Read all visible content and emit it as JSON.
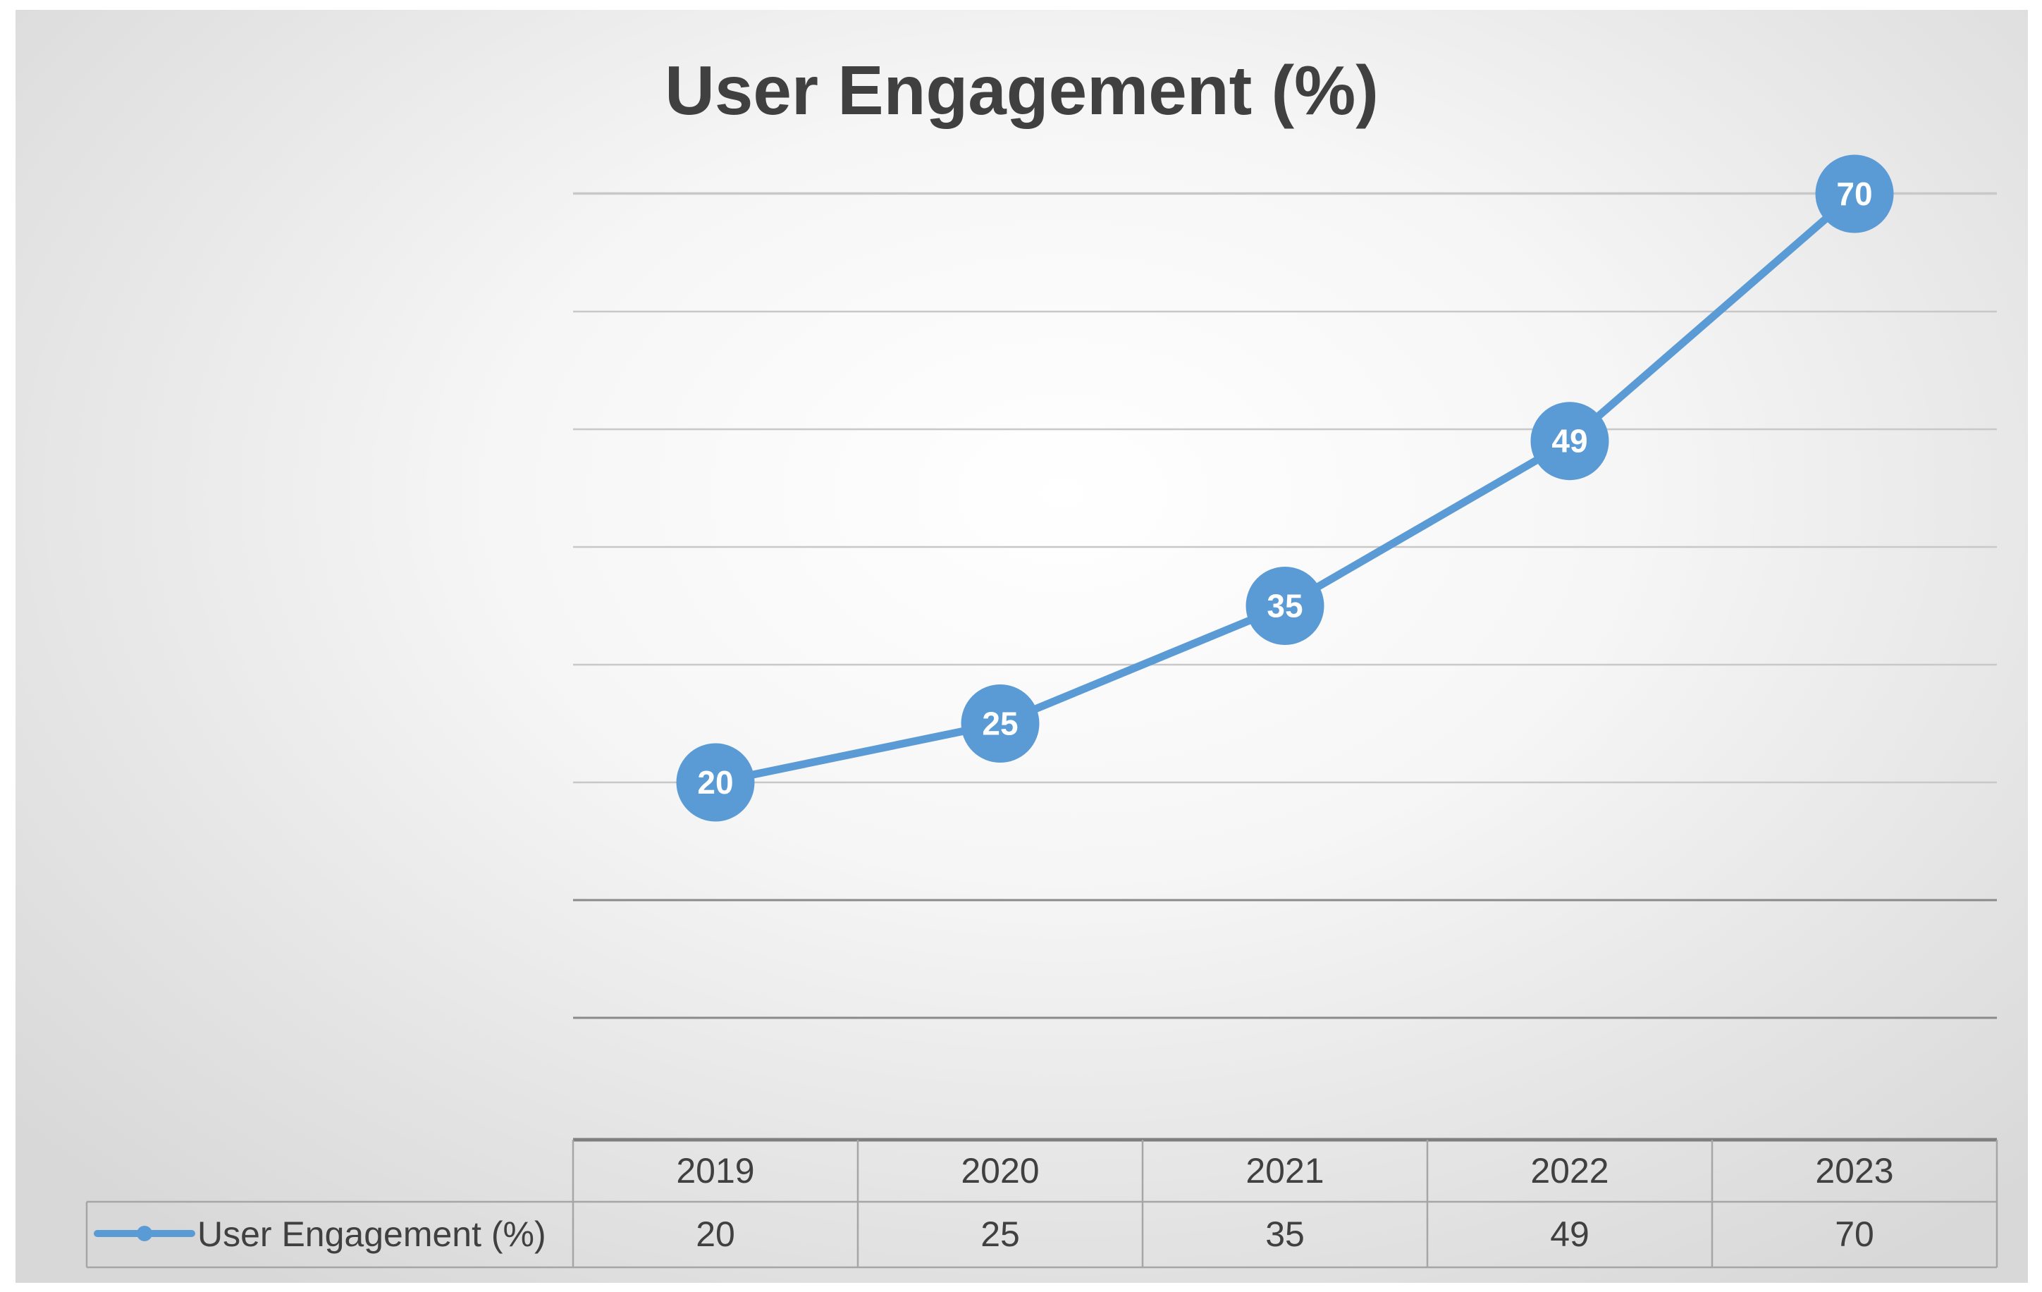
{
  "chart_data": {
    "type": "line",
    "title": "User Engagement (%)",
    "categories": [
      "2019",
      "2020",
      "2021",
      "2022",
      "2023"
    ],
    "series": [
      {
        "name": "User Engagement (%)",
        "values": [
          20,
          25,
          35,
          49,
          70
        ],
        "color": "#5b9bd5"
      }
    ],
    "ylim": [
      0,
      70
    ],
    "grid": true,
    "legend": "data-table-left",
    "data_table": true,
    "data_labels": true
  }
}
